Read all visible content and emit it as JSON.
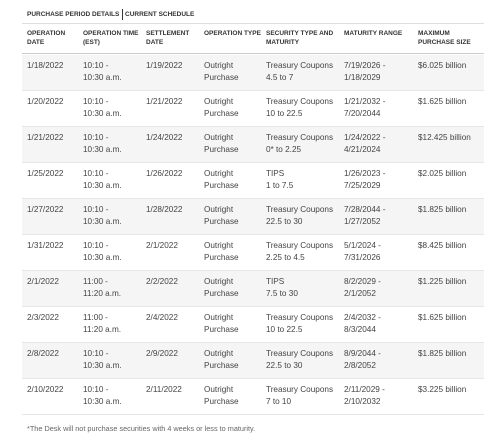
{
  "tabs": [
    "PURCHASE PERIOD DETAILS",
    "CURRENT SCHEDULE"
  ],
  "table": {
    "columns": [
      [
        "OPERATION",
        "DATE"
      ],
      [
        "OPERATION TIME",
        "(EST)"
      ],
      [
        "SETTLEMENT",
        "DATE"
      ],
      [
        "OPERATION TYPE"
      ],
      [
        "SECURITY TYPE AND",
        "MATURITY"
      ],
      [
        "MATURITY RANGE"
      ],
      [
        "MAXIMUM",
        "PURCHASE SIZE"
      ]
    ],
    "rows": [
      [
        [
          "1/18/2022"
        ],
        [
          "10:10 -",
          "10:30 a.m."
        ],
        [
          "1/19/2022"
        ],
        [
          "Outright",
          "Purchase"
        ],
        [
          "Treasury Coupons",
          "4.5 to 7"
        ],
        [
          "7/19/2026 -",
          "1/18/2029"
        ],
        [
          "$6.025 billion"
        ]
      ],
      [
        [
          "1/20/2022"
        ],
        [
          "10:10 -",
          "10:30 a.m."
        ],
        [
          "1/21/2022"
        ],
        [
          "Outright",
          "Purchase"
        ],
        [
          "Treasury Coupons",
          "10 to 22.5"
        ],
        [
          "1/21/2032 -",
          "7/20/2044"
        ],
        [
          "$1.625 billion"
        ]
      ],
      [
        [
          "1/21/2022"
        ],
        [
          "10:10 -",
          "10:30 a.m."
        ],
        [
          "1/24/2022"
        ],
        [
          "Outright",
          "Purchase"
        ],
        [
          "Treasury Coupons",
          "0* to 2.25"
        ],
        [
          "1/24/2022 -",
          "4/21/2024"
        ],
        [
          "$12.425 billion"
        ]
      ],
      [
        [
          "1/25/2022"
        ],
        [
          "10:10 -",
          "10:30 a.m."
        ],
        [
          "1/26/2022"
        ],
        [
          "Outright",
          "Purchase"
        ],
        [
          "TIPS",
          "1 to 7.5"
        ],
        [
          "1/26/2023 -",
          "7/25/2029"
        ],
        [
          "$2.025 billion"
        ]
      ],
      [
        [
          "1/27/2022"
        ],
        [
          "10:10 -",
          "10:30 a.m."
        ],
        [
          "1/28/2022"
        ],
        [
          "Outright",
          "Purchase"
        ],
        [
          "Treasury Coupons",
          "22.5 to 30"
        ],
        [
          "7/28/2044 -",
          "1/27/2052"
        ],
        [
          "$1.825 billion"
        ]
      ],
      [
        [
          "1/31/2022"
        ],
        [
          "10:10 -",
          "10:30 a.m."
        ],
        [
          "2/1/2022"
        ],
        [
          "Outright",
          "Purchase"
        ],
        [
          "Treasury Coupons",
          "2.25 to 4.5"
        ],
        [
          "5/1/2024 -",
          "7/31/2026"
        ],
        [
          "$8.425 billion"
        ]
      ],
      [
        [
          "2/1/2022"
        ],
        [
          "11:00 -",
          "11:20 a.m."
        ],
        [
          "2/2/2022"
        ],
        [
          "Outright",
          "Purchase"
        ],
        [
          "TIPS",
          "7.5 to 30"
        ],
        [
          "8/2/2029 -",
          "2/1/2052"
        ],
        [
          "$1.225 billion"
        ]
      ],
      [
        [
          "2/3/2022"
        ],
        [
          "11:00 -",
          "11:20 a.m."
        ],
        [
          "2/4/2022"
        ],
        [
          "Outright",
          "Purchase"
        ],
        [
          "Treasury Coupons",
          "10 to 22.5"
        ],
        [
          "2/4/2032 -",
          "8/3/2044"
        ],
        [
          "$1.625 billion"
        ]
      ],
      [
        [
          "2/8/2022"
        ],
        [
          "10:10 -",
          "10:30 a.m."
        ],
        [
          "2/9/2022"
        ],
        [
          "Outright",
          "Purchase"
        ],
        [
          "Treasury Coupons",
          "22.5 to 30"
        ],
        [
          "8/9/2044 -",
          "2/8/2052"
        ],
        [
          "$1.825 billion"
        ]
      ],
      [
        [
          "2/10/2022"
        ],
        [
          "10:10 -",
          "10:30 a.m."
        ],
        [
          "2/11/2022"
        ],
        [
          "Outright",
          "Purchase"
        ],
        [
          "Treasury Coupons",
          "7 to 10"
        ],
        [
          "2/11/2029 -",
          "2/10/2032"
        ],
        [
          "$3.225 billion"
        ]
      ]
    ]
  },
  "footnote": "*The Desk will not purchase securities with 4 weeks or less to maturity."
}
